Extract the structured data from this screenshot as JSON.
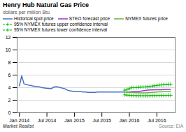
{
  "chart_data": {
    "type": "line",
    "title": "Henry Hub Natural Gas Price",
    "subtitle": "dollars per million Btu",
    "annotations": [
      "Market Realist",
      "Source: EIA"
    ],
    "xlim": [
      -0.5,
      34
    ],
    "xticks": [
      {
        "value": 0,
        "label": "Jan 2014"
      },
      {
        "value": 6,
        "label": "Jul 2014"
      },
      {
        "value": 12,
        "label": "Jan 2015"
      },
      {
        "value": 18,
        "label": "Jul 2015"
      },
      {
        "value": 24,
        "label": "Jan 2016"
      },
      {
        "value": 30,
        "label": "Jul 2016"
      }
    ],
    "ylim": [
      0,
      12
    ],
    "yticks": [
      0,
      2,
      4,
      6,
      8,
      10,
      12
    ],
    "grid": true,
    "legend": "top",
    "series": [
      {
        "name": "Historical spot price",
        "color": "#4472c4",
        "line_style": "solid",
        "x": [
          0,
          0.5,
          1,
          1.5,
          2,
          2.5,
          3,
          3.5,
          4,
          4.5,
          5,
          5.5,
          6,
          6.5,
          7,
          7.5,
          8,
          8.5,
          9,
          9.5,
          10,
          10.5,
          11,
          11.5,
          12,
          12.5,
          13,
          13.5,
          14,
          14.5,
          15,
          15.5,
          16,
          16.5,
          17,
          17.5,
          18,
          18.5,
          19,
          19.5,
          20,
          20.5,
          21,
          21.5,
          22,
          22.5,
          23
        ],
        "values": [
          4.3,
          5.9,
          4.6,
          4.5,
          4.4,
          4.35,
          4.25,
          4.2,
          4.15,
          4.1,
          4.0,
          3.95,
          3.9,
          3.85,
          3.85,
          4.1,
          4.15,
          4.1,
          4.0,
          3.9,
          3.8,
          3.6,
          3.5,
          3.45,
          3.4,
          3.4,
          3.35,
          3.35,
          3.3,
          3.3,
          3.25,
          3.25,
          3.25,
          3.25,
          3.3,
          3.3,
          3.3,
          3.3,
          3.3,
          3.3,
          3.3,
          3.3,
          3.3,
          3.3,
          3.3,
          3.3,
          3.3
        ]
      },
      {
        "name": "STEO forecast price",
        "color": "#9932cc",
        "line_style": "solid",
        "x": [
          23,
          23.5,
          24,
          24.5,
          25,
          25.5,
          26,
          26.5,
          27,
          27.5,
          28,
          28.5,
          29,
          29.5,
          30,
          30.5,
          31,
          31.5,
          32,
          32.5,
          33
        ],
        "values": [
          3.3,
          3.3,
          3.3,
          3.35,
          3.35,
          3.4,
          3.4,
          3.45,
          3.5,
          3.55,
          3.6,
          3.65,
          3.65,
          3.68,
          3.68,
          3.68,
          3.68,
          3.7,
          3.72,
          3.72,
          3.72
        ]
      },
      {
        "name": "NYMEX futures price",
        "color": "#70ad47",
        "line_style": "solid",
        "x": [
          23,
          23.5,
          24,
          24.5,
          25,
          25.5,
          26,
          26.5,
          27,
          27.5,
          28,
          28.5,
          29,
          29.5,
          30,
          30.5,
          31,
          31.5,
          32,
          32.5,
          33
        ],
        "values": [
          3.3,
          3.28,
          3.25,
          3.25,
          3.22,
          3.2,
          3.2,
          3.18,
          3.18,
          3.18,
          3.2,
          3.22,
          3.25,
          3.28,
          3.3,
          3.32,
          3.33,
          3.35,
          3.35,
          3.36,
          3.36
        ]
      },
      {
        "name": "95% NYMEX futures upper confidence interval",
        "color": "#00bb00",
        "line_style": "dashed",
        "marker": "plus",
        "x": [
          23,
          23.5,
          24,
          24.5,
          25,
          25.5,
          26,
          26.5,
          27,
          27.5,
          28,
          28.5,
          29,
          29.5,
          30,
          30.5,
          31,
          31.5,
          32,
          32.5,
          33
        ],
        "values": [
          3.6,
          3.7,
          3.85,
          4.0,
          4.0,
          4.0,
          4.05,
          4.08,
          4.1,
          4.12,
          4.15,
          4.2,
          4.25,
          4.3,
          4.35,
          4.4,
          4.44,
          4.48,
          4.5,
          4.52,
          4.55
        ]
      },
      {
        "name": "95% NYMEX futures lower confidence interval",
        "color": "#00bb00",
        "line_style": "dashed",
        "marker": "plus",
        "x": [
          23,
          23.5,
          24,
          24.5,
          25,
          25.5,
          26,
          26.5,
          27,
          27.5,
          28,
          28.5,
          29,
          29.5,
          30,
          30.5,
          31,
          31.5,
          32,
          32.5,
          33
        ],
        "values": [
          2.85,
          2.82,
          2.78,
          2.76,
          2.74,
          2.73,
          2.72,
          2.71,
          2.71,
          2.71,
          2.72,
          2.73,
          2.74,
          2.75,
          2.76,
          2.76,
          2.77,
          2.77,
          2.78,
          2.78,
          2.78
        ]
      }
    ]
  }
}
